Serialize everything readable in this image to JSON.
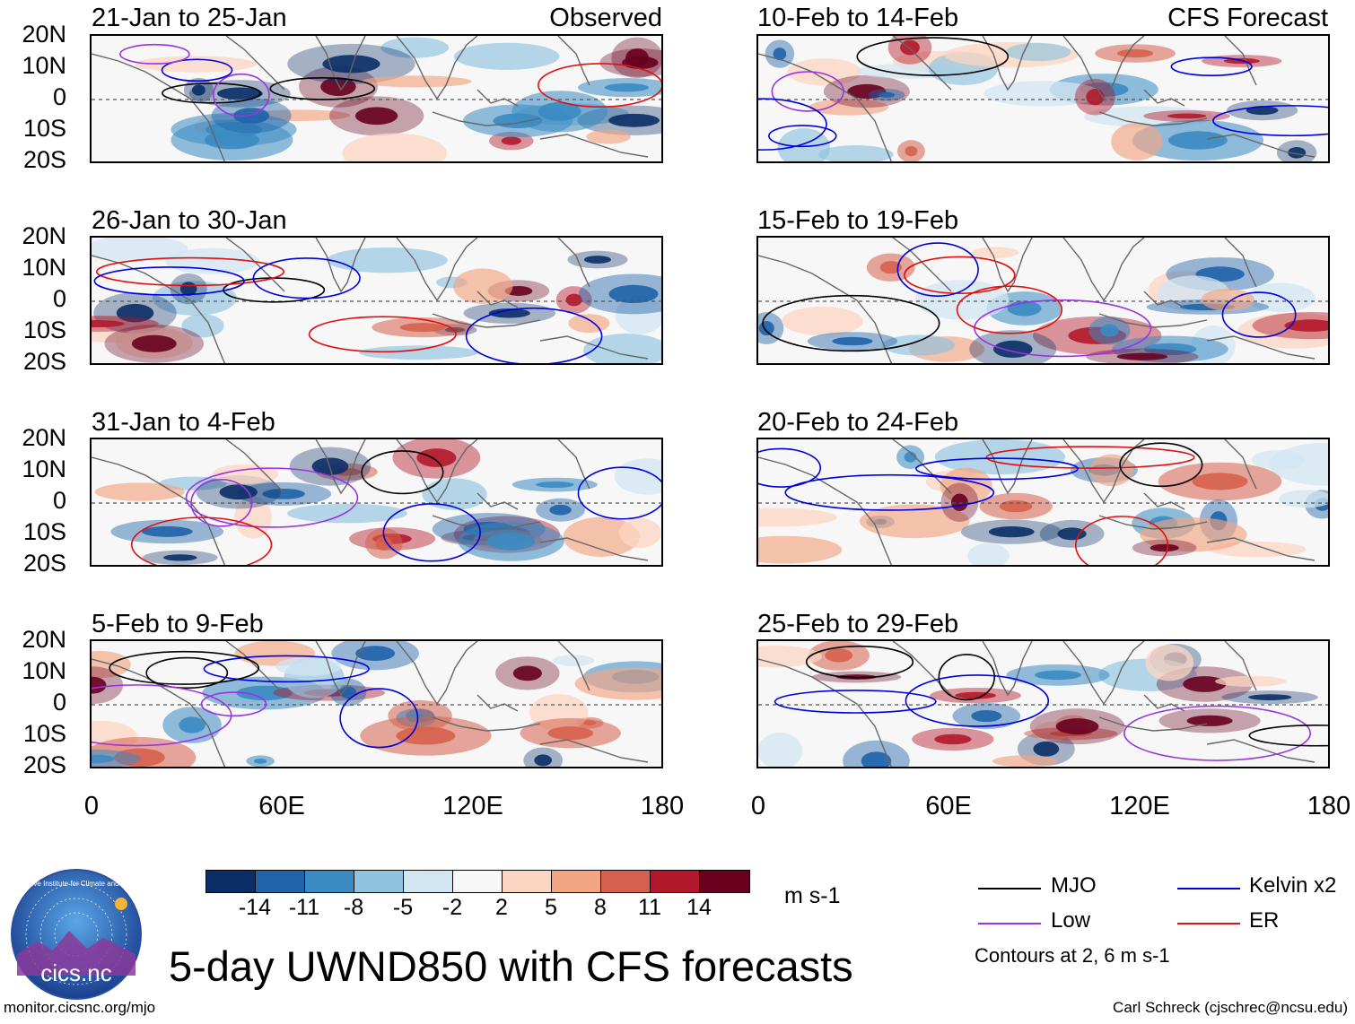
{
  "header": {
    "observed_tag": "Observed",
    "forecast_tag": "CFS Forecast"
  },
  "panels_left": [
    {
      "title": "21-Jan to 25-Jan"
    },
    {
      "title": "26-Jan to 30-Jan"
    },
    {
      "title": "31-Jan to 4-Feb"
    },
    {
      "title": "5-Feb to 9-Feb"
    }
  ],
  "panels_right": [
    {
      "title": "10-Feb to 14-Feb"
    },
    {
      "title": "15-Feb to 19-Feb"
    },
    {
      "title": "20-Feb to 24-Feb"
    },
    {
      "title": "25-Feb to 29-Feb"
    }
  ],
  "lat_labels": [
    "20N",
    "10N",
    "0",
    "10S",
    "20S"
  ],
  "lon_labels": [
    "0",
    "60E",
    "120E",
    "180"
  ],
  "colorbar": {
    "colors": [
      "#0a2f66",
      "#1f63a8",
      "#3a8bc2",
      "#8fc3de",
      "#d2e6f1",
      "#f7f7f7",
      "#fcd6c2",
      "#f3a482",
      "#d6604d",
      "#b2182b",
      "#67001f"
    ],
    "labels": [
      "-14",
      "-11",
      "-8",
      "-5",
      "-2",
      "2",
      "5",
      "8",
      "11",
      "14"
    ],
    "units": "m s-1"
  },
  "legend": {
    "items": [
      {
        "label": "MJO",
        "color": "#000000"
      },
      {
        "label": "Kelvin x2",
        "color": "#0000dd"
      },
      {
        "label": "Low",
        "color": "#9a33e0"
      },
      {
        "label": "ER",
        "color": "#e01010"
      }
    ],
    "note": "Contours at 2, 6 m s-1"
  },
  "title": "5-day UWND850 with CFS forecasts",
  "logo_text": "cics.nc",
  "logo_ring_text": "Cooperative Institute for Climate and Satellites",
  "footer": {
    "left": "monitor.cicsnc.org/mjo",
    "right": "Carl Schreck (cjschrec@ncsu.edu)"
  }
}
